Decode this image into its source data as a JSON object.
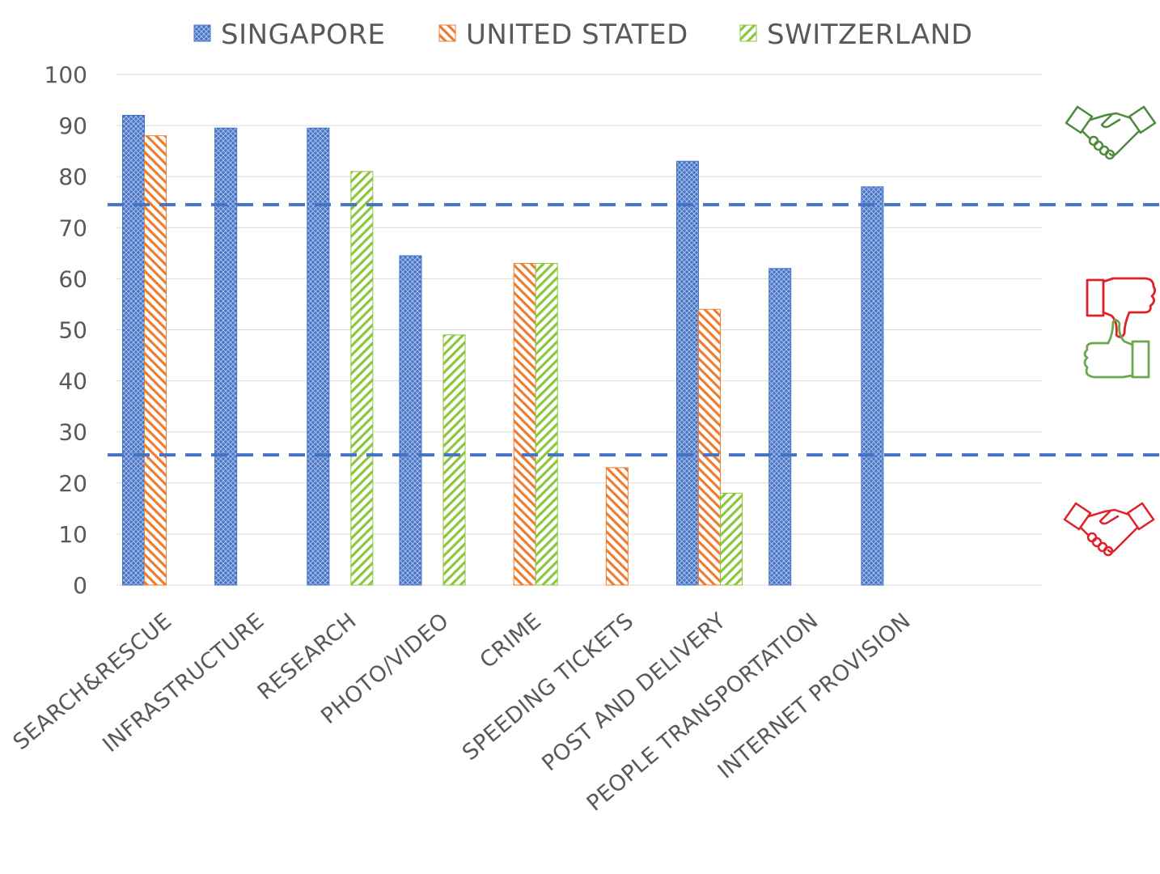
{
  "chart_data": {
    "type": "bar",
    "categories": [
      "SEARCH&RESCUE",
      "INFRASTRUCTURE",
      "RESEARCH",
      "PHOTO/VIDEO",
      "CRIME",
      "SPEEDING TICKETS",
      "POST AND DELIVERY",
      "PEOPLE TRANSPORTATION",
      "INTERNET PROVISION"
    ],
    "series": [
      {
        "name": "SINGAPORE",
        "color": "#4472C4",
        "values": [
          92,
          89.5,
          89.5,
          64.5,
          null,
          null,
          83,
          62,
          78
        ]
      },
      {
        "name": "UNITED STATED",
        "color": "#ED7D31",
        "values": [
          88,
          null,
          null,
          null,
          63,
          23,
          54,
          null,
          null
        ]
      },
      {
        "name": "SWITZERLAND",
        "color": "#8CC63F",
        "values": [
          null,
          null,
          81,
          49,
          63,
          null,
          18,
          null,
          null
        ]
      }
    ],
    "ylim": [
      0,
      100
    ],
    "yticks": [
      "0",
      "10",
      "20",
      "30",
      "40",
      "50",
      "60",
      "70",
      "80",
      "90",
      "100"
    ],
    "reference_lines": [
      74.5,
      25.5
    ],
    "legend_position": "top-center",
    "title": "",
    "xlabel": "",
    "ylabel": ""
  },
  "icons": {
    "top": {
      "name": "handshake-icon",
      "color": "#4E8A3E"
    },
    "middle_up": {
      "name": "thumbs-down-icon",
      "color": "#E0202A"
    },
    "middle_down": {
      "name": "thumbs-up-icon",
      "color": "#6AA84F"
    },
    "bottom": {
      "name": "handshake-icon",
      "color": "#E0202A"
    }
  }
}
